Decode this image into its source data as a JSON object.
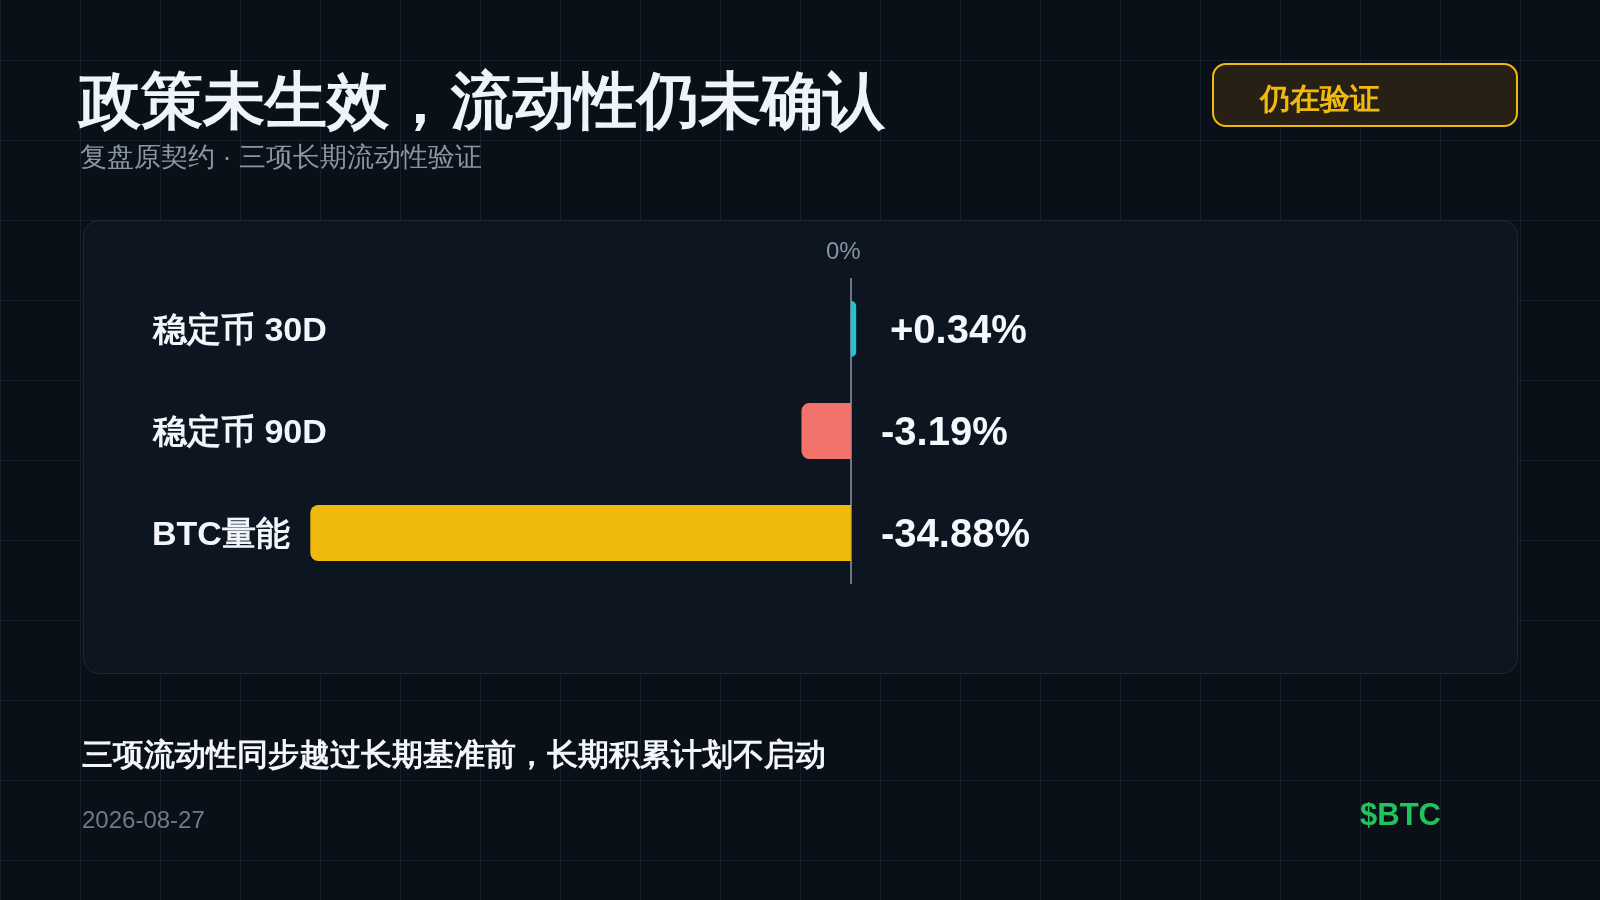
{
  "chart_data": {
    "type": "bar",
    "orientation": "horizontal",
    "title": "政策未生效，流动性仍未确认",
    "subtitle": "复盘原契约 · 三项长期流动性验证",
    "categories": [
      "稳定币 30D",
      "稳定币 90D",
      "BTC量能"
    ],
    "values": [
      0.34,
      -3.19,
      -34.88
    ],
    "colors": [
      "#22c3d6",
      "#f1736c",
      "#f0b90e"
    ],
    "value_labels": [
      "+0.34%",
      "-3.19%",
      "-34.88%"
    ],
    "tick_labels": "y",
    "annotations": [
      "0%",
      "仍在验证",
      "三项流动性同步越过长期基准前，长期积累计划不启动",
      "2026-08-27",
      "$BTC"
    ]
  }
}
